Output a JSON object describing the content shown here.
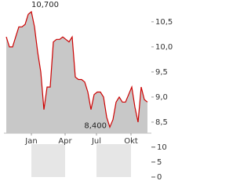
{
  "chart_data": {
    "type": "area",
    "values": [
      10.2,
      10.0,
      10.0,
      10.2,
      10.4,
      10.4,
      10.45,
      10.65,
      10.7,
      10.4,
      9.9,
      9.5,
      8.75,
      9.2,
      9.2,
      10.1,
      10.15,
      10.15,
      10.2,
      10.15,
      10.1,
      10.2,
      9.4,
      9.35,
      9.35,
      9.3,
      9.1,
      8.75,
      9.05,
      9.1,
      9.1,
      9.0,
      8.6,
      8.4,
      8.55,
      8.9,
      9.0,
      8.9,
      8.9,
      9.05,
      9.2,
      8.8,
      8.5,
      9.2,
      8.95,
      8.9
    ],
    "line_color": "#cc0000",
    "fill_color": "#c8c8c8",
    "xlim": [
      0,
      45
    ],
    "xticks": [
      {
        "value": 8,
        "label": "Jan"
      },
      {
        "value": 18.75,
        "label": "Apr"
      },
      {
        "value": 28.75,
        "label": "Jul"
      },
      {
        "value": 39.75,
        "label": "Okt"
      }
    ],
    "ylim": [
      8.28,
      10.81
    ],
    "yticks": [
      {
        "value": 10.5,
        "label": "10,5"
      },
      {
        "value": 10.0,
        "label": "10,0"
      },
      {
        "value": 9.5,
        "label": "9,5"
      },
      {
        "value": 9.0,
        "label": "9,0"
      },
      {
        "value": 8.5,
        "label": "8,5"
      }
    ],
    "annotations": [
      {
        "label": "10,700",
        "value": 10.7
      },
      {
        "label": "8,400",
        "value": 8.4
      }
    ],
    "volume_ylim": [
      0,
      11
    ],
    "volume_yticks": [
      10,
      5,
      0
    ]
  }
}
